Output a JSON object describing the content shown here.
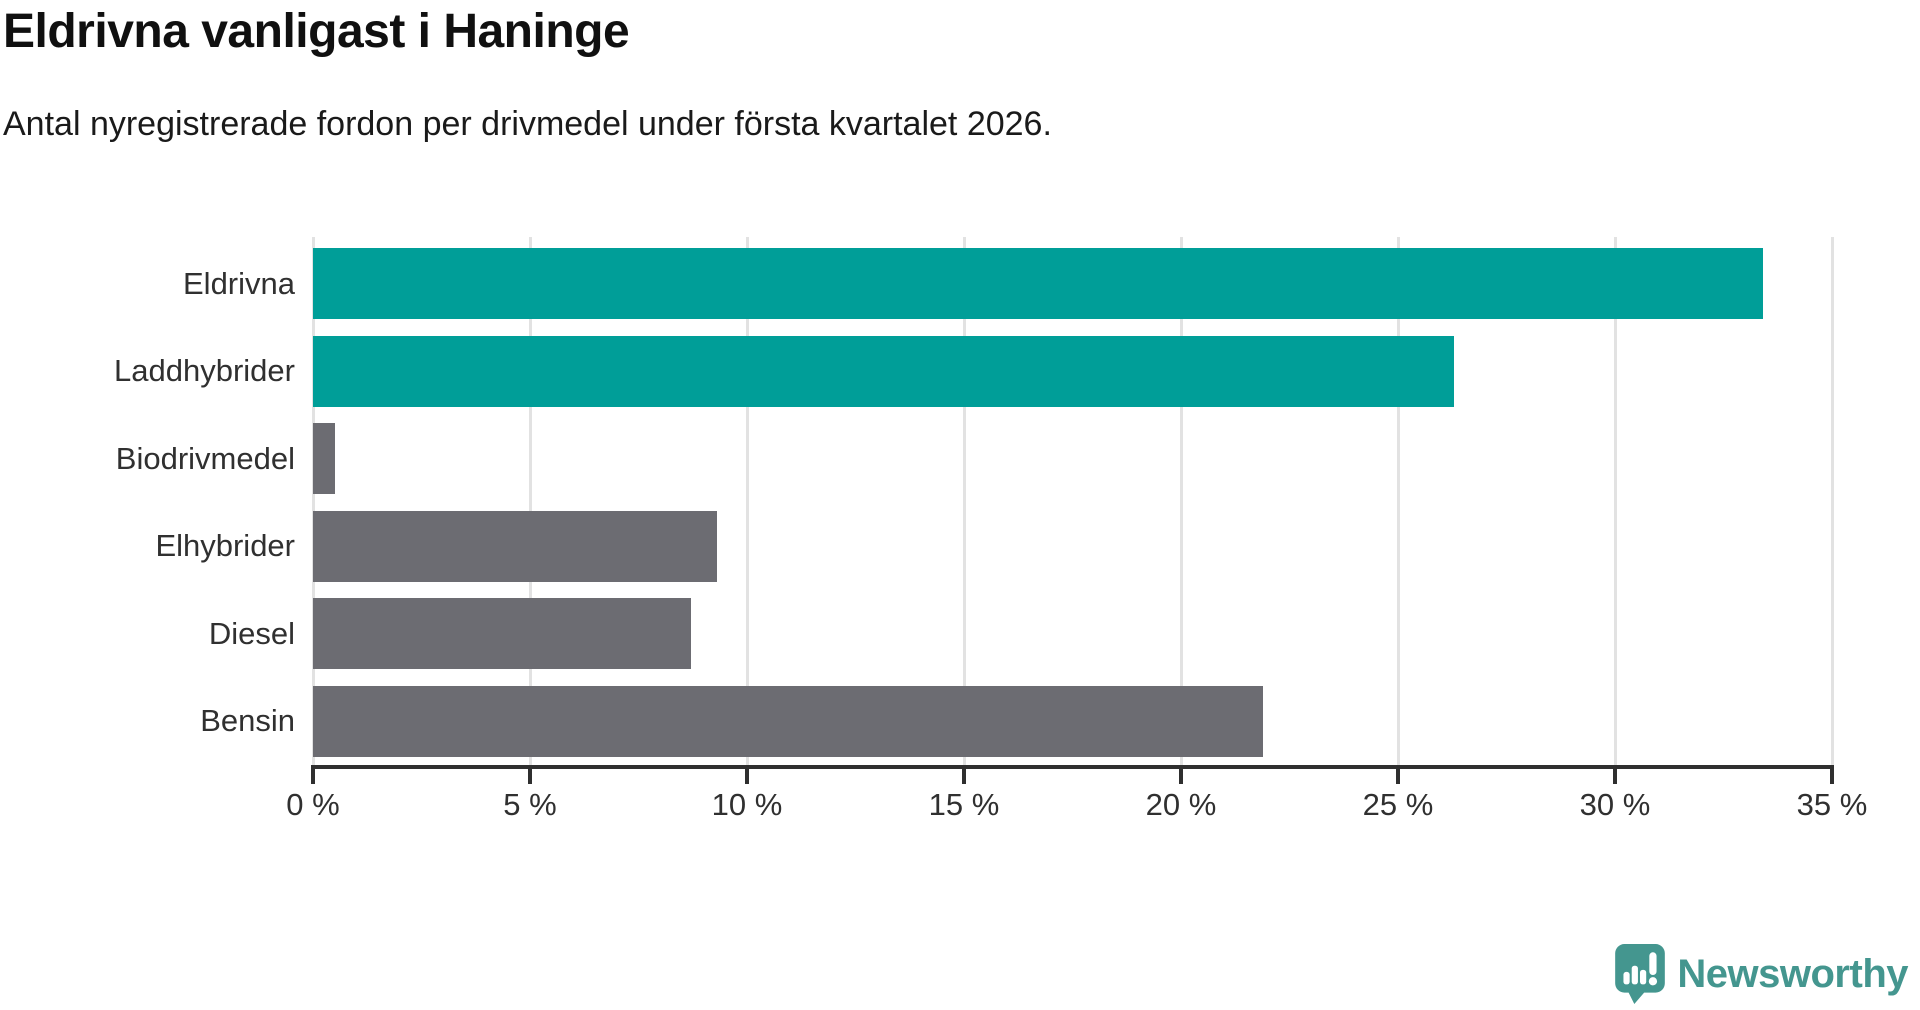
{
  "header": {
    "title": "Eldrivna vanligast i Haninge",
    "subtitle": "Antal nyregistrerade fordon per drivmedel under första kvartalet 2026."
  },
  "chart_data": {
    "type": "bar",
    "orientation": "horizontal",
    "title": "Eldrivna vanligast i Haninge",
    "subtitle": "Antal nyregistrerade fordon per drivmedel under första kvartalet 2026.",
    "categories": [
      "Eldrivna",
      "Laddhybrider",
      "Biodrivmedel",
      "Elhybrider",
      "Diesel",
      "Bensin"
    ],
    "values": [
      33.4,
      26.3,
      0.5,
      9.3,
      8.7,
      21.9
    ],
    "unit": "%",
    "bar_colors": [
      "#009E98",
      "#009E98",
      "#6C6C72",
      "#6C6C72",
      "#6C6C72",
      "#6C6C72"
    ],
    "highlight_color": "#009E98",
    "default_color": "#6C6C72",
    "xlim": [
      0,
      35
    ],
    "x_ticks": [
      {
        "value": 0,
        "label": "0 %"
      },
      {
        "value": 5,
        "label": "5 %"
      },
      {
        "value": 10,
        "label": "10 %"
      },
      {
        "value": 15,
        "label": "15 %"
      },
      {
        "value": 20,
        "label": "20 %"
      },
      {
        "value": 25,
        "label": "25 %"
      },
      {
        "value": 30,
        "label": "30 %"
      },
      {
        "value": 35,
        "label": "35 %"
      }
    ],
    "grid": true,
    "legend": false
  },
  "colors": {
    "gridline": "#E2E2E2",
    "axis": "#2F2F2F",
    "label_text": "#303030",
    "title_text": "#111111",
    "logo": "#44968F"
  },
  "footer": {
    "brand": "Newsworthy"
  }
}
